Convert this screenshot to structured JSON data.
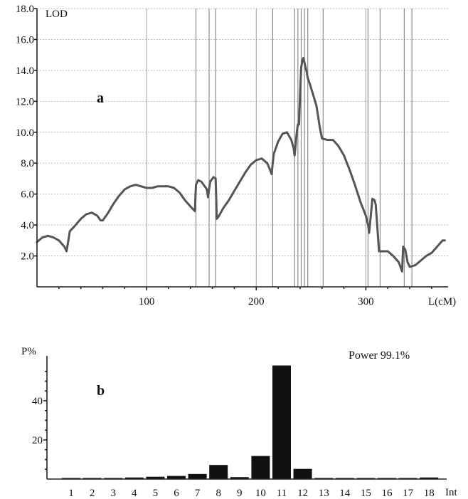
{
  "chart_data": [
    {
      "type": "line",
      "panel_label": "a",
      "ylabel": "LOD",
      "xlabel": "L(cM)",
      "xlim": [
        0,
        375
      ],
      "ylim": [
        0,
        18
      ],
      "y_ticks": [
        "2.0",
        "4.0",
        "6.0",
        "8.0",
        "10.0",
        "12.0",
        "14.0",
        "16.0",
        "18.0"
      ],
      "x_ticks": [
        "100",
        "200",
        "300"
      ],
      "grid": "horizontal dashed",
      "marker_positions": [
        145,
        157,
        163,
        215,
        235,
        238,
        241,
        244,
        247,
        261,
        302,
        313,
        335,
        342
      ],
      "x": [
        0,
        5,
        10,
        15,
        20,
        25,
        27,
        30,
        34,
        40,
        45,
        50,
        55,
        58,
        60,
        65,
        70,
        75,
        80,
        85,
        90,
        95,
        100,
        105,
        110,
        115,
        120,
        125,
        130,
        135,
        140,
        144,
        145,
        147,
        150,
        152,
        155,
        156,
        158,
        161,
        163,
        164,
        166,
        170,
        175,
        180,
        185,
        190,
        195,
        200,
        205,
        210,
        213,
        214,
        216,
        220,
        224,
        228,
        232,
        234,
        235,
        237,
        238,
        239,
        240,
        241,
        242,
        243,
        244,
        245,
        246,
        247,
        249,
        252,
        255,
        258,
        260,
        265,
        270,
        275,
        280,
        285,
        290,
        295,
        300,
        302,
        303,
        306,
        308,
        309,
        312,
        316,
        320,
        325,
        330,
        332,
        333,
        334,
        336,
        338,
        340,
        345,
        350,
        355,
        360,
        365,
        370,
        372
      ],
      "values": [
        2.9,
        3.2,
        3.3,
        3.2,
        3.0,
        2.6,
        2.3,
        3.6,
        3.9,
        4.4,
        4.7,
        4.8,
        4.6,
        4.3,
        4.3,
        4.8,
        5.4,
        5.9,
        6.3,
        6.5,
        6.6,
        6.5,
        6.4,
        6.4,
        6.5,
        6.5,
        6.5,
        6.4,
        6.1,
        5.6,
        5.2,
        4.9,
        6.6,
        6.9,
        6.8,
        6.6,
        6.3,
        5.8,
        6.8,
        7.1,
        7.0,
        4.4,
        4.6,
        5.1,
        5.6,
        6.2,
        6.8,
        7.4,
        7.9,
        8.2,
        8.3,
        8.0,
        7.5,
        7.3,
        8.6,
        9.4,
        9.9,
        10.0,
        9.5,
        9.0,
        8.5,
        10.0,
        10.5,
        10.5,
        12.5,
        14.2,
        14.6,
        14.8,
        14.5,
        14.2,
        13.9,
        13.5,
        13.1,
        12.4,
        11.7,
        10.3,
        9.6,
        9.5,
        9.5,
        9.1,
        8.5,
        7.6,
        6.6,
        5.5,
        4.6,
        4.0,
        3.5,
        5.7,
        5.6,
        5.3,
        2.3,
        2.3,
        2.3,
        2.0,
        1.6,
        1.2,
        1.0,
        2.6,
        2.4,
        1.6,
        1.3,
        1.4,
        1.7,
        2.0,
        2.2,
        2.6,
        3.0,
        3.0
      ]
    },
    {
      "type": "bar",
      "panel_label": "b",
      "ylabel": "P%",
      "xlabel": "Int",
      "annotation": "Power 99.1%",
      "ylim": [
        0,
        60
      ],
      "y_ticks": [
        "20",
        "40"
      ],
      "categories": [
        "1",
        "2",
        "3",
        "4",
        "5",
        "6",
        "7",
        "8",
        "9",
        "10",
        "11",
        "12",
        "13",
        "14",
        "15",
        "16",
        "17",
        "18"
      ],
      "values": [
        0.4,
        0.2,
        0.4,
        0.8,
        1.2,
        1.6,
        2.6,
        7.2,
        1.0,
        11.8,
        58.0,
        5.2,
        0.2,
        0.2,
        0.1,
        0.3,
        0.1,
        0.8
      ]
    }
  ]
}
